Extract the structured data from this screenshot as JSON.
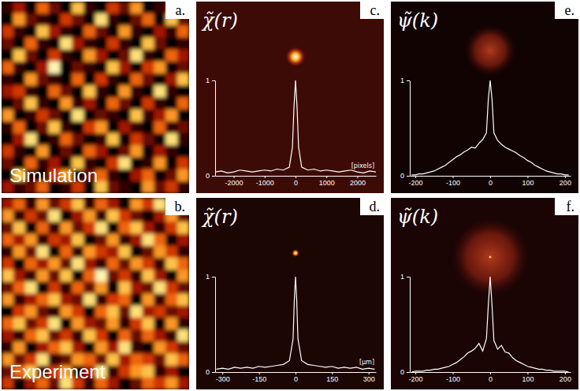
{
  "chart_data": [
    {
      "type": "heatmap",
      "label": "a.",
      "caption": "Simulation",
      "cells": [
        [
          1,
          3,
          0,
          5,
          2,
          0,
          7,
          1,
          0,
          4,
          2,
          6,
          0,
          1,
          3,
          0
        ],
        [
          0,
          6,
          2,
          1,
          0,
          4,
          2,
          0,
          8,
          1,
          0,
          2,
          5,
          0,
          7,
          2
        ],
        [
          4,
          1,
          0,
          7,
          3,
          1,
          0,
          5,
          2,
          0,
          6,
          1,
          0,
          3,
          1,
          5
        ],
        [
          2,
          0,
          5,
          1,
          0,
          8,
          3,
          1,
          0,
          4,
          1,
          0,
          7,
          2,
          0,
          1
        ],
        [
          0,
          7,
          2,
          0,
          4,
          1,
          0,
          6,
          3,
          0,
          2,
          8,
          1,
          0,
          5,
          3
        ],
        [
          5,
          1,
          0,
          3,
          9,
          0,
          2,
          1,
          0,
          7,
          3,
          0,
          4,
          6,
          0,
          2
        ],
        [
          1,
          0,
          6,
          2,
          1,
          0,
          5,
          0,
          4,
          1,
          0,
          5,
          2,
          0,
          3,
          7
        ],
        [
          3,
          4,
          1,
          0,
          5,
          2,
          0,
          7,
          1,
          0,
          6,
          1,
          0,
          8,
          1,
          0
        ],
        [
          0,
          2,
          7,
          1,
          0,
          6,
          1,
          3,
          0,
          5,
          2,
          0,
          4,
          1,
          0,
          5
        ],
        [
          6,
          0,
          1,
          4,
          2,
          0,
          8,
          0,
          2,
          1,
          0,
          7,
          1,
          3,
          6,
          0
        ],
        [
          1,
          5,
          0,
          2,
          7,
          1,
          0,
          4,
          6,
          0,
          3,
          1,
          0,
          5,
          1,
          2
        ],
        [
          0,
          3,
          8,
          0,
          1,
          5,
          2,
          0,
          1,
          7,
          0,
          4,
          2,
          0,
          8,
          1
        ],
        [
          4,
          1,
          0,
          6,
          0,
          2,
          0,
          5,
          3,
          0,
          2,
          6,
          0,
          3,
          1,
          0
        ],
        [
          2,
          0,
          5,
          1,
          3,
          0,
          7,
          1,
          0,
          4,
          8,
          0,
          1,
          6,
          0,
          4
        ],
        [
          0,
          7,
          1,
          0,
          4,
          6,
          0,
          2,
          5,
          1,
          0,
          3,
          5,
          0,
          2,
          6
        ],
        [
          3,
          1,
          2,
          5,
          0,
          1,
          4,
          0,
          7,
          2,
          1,
          0,
          6,
          2,
          4,
          1
        ]
      ]
    },
    {
      "type": "heatmap",
      "label": "b.",
      "caption": "Experiment",
      "cells": [
        [
          3,
          5,
          1,
          6,
          2,
          4,
          7,
          1,
          5,
          3,
          0,
          6,
          4,
          8,
          1,
          5
        ],
        [
          6,
          1,
          4,
          2,
          8,
          0,
          3,
          6,
          1,
          7,
          4,
          2,
          0,
          3,
          6,
          2
        ],
        [
          2,
          7,
          0,
          5,
          1,
          6,
          2,
          4,
          8,
          0,
          5,
          7,
          3,
          1,
          4,
          7
        ],
        [
          5,
          3,
          6,
          1,
          4,
          3,
          7,
          0,
          2,
          6,
          1,
          3,
          8,
          5,
          0,
          3
        ],
        [
          1,
          6,
          2,
          8,
          0,
          5,
          1,
          6,
          4,
          3,
          7,
          0,
          2,
          6,
          4,
          1
        ],
        [
          4,
          0,
          5,
          3,
          6,
          2,
          8,
          3,
          1,
          5,
          2,
          6,
          4,
          1,
          7,
          5
        ],
        [
          7,
          3,
          1,
          6,
          2,
          7,
          0,
          5,
          9,
          2,
          4,
          1,
          7,
          3,
          0,
          6
        ],
        [
          2,
          5,
          8,
          0,
          4,
          1,
          5,
          2,
          6,
          0,
          7,
          3,
          2,
          8,
          4,
          2
        ],
        [
          6,
          1,
          3,
          5,
          7,
          3,
          2,
          8,
          1,
          4,
          5,
          0,
          6,
          1,
          5,
          7
        ],
        [
          0,
          4,
          6,
          2,
          1,
          6,
          4,
          0,
          5,
          7,
          2,
          8,
          3,
          4,
          2,
          3
        ],
        [
          5,
          7,
          2,
          4,
          8,
          0,
          6,
          3,
          2,
          6,
          1,
          4,
          7,
          0,
          6,
          1
        ],
        [
          3,
          1,
          5,
          7,
          2,
          4,
          1,
          7,
          4,
          0,
          5,
          2,
          5,
          3,
          1,
          8
        ],
        [
          1,
          6,
          0,
          3,
          5,
          7,
          3,
          0,
          6,
          3,
          8,
          1,
          0,
          6,
          4,
          2
        ],
        [
          6,
          2,
          4,
          8,
          1,
          2,
          6,
          5,
          2,
          7,
          3,
          5,
          4,
          2,
          7,
          5
        ],
        [
          2,
          5,
          7,
          1,
          4,
          6,
          0,
          3,
          8,
          1,
          4,
          6,
          7,
          1,
          3,
          0
        ],
        [
          4,
          0,
          3,
          5,
          2,
          8,
          4,
          1,
          5,
          3,
          0,
          2,
          5,
          4,
          6,
          3
        ]
      ]
    },
    {
      "type": "line",
      "label": "c.",
      "title": "χ̃(r)",
      "xlabel": "[pixels]",
      "color": "#ffffff",
      "x": [
        -2600,
        -2400,
        -2200,
        -2000,
        -1800,
        -1600,
        -1400,
        -1200,
        -1000,
        -800,
        -600,
        -400,
        -200,
        -100,
        -50,
        0,
        50,
        100,
        200,
        400,
        600,
        800,
        1000,
        1200,
        1400,
        1600,
        1800,
        2000,
        2200,
        2400,
        2600
      ],
      "values": [
        0.04,
        0.05,
        0.03,
        0.04,
        0.06,
        0.05,
        0.04,
        0.05,
        0.06,
        0.05,
        0.07,
        0.06,
        0.09,
        0.3,
        0.72,
        1,
        0.72,
        0.3,
        0.09,
        0.06,
        0.07,
        0.05,
        0.06,
        0.05,
        0.04,
        0.05,
        0.06,
        0.04,
        0.03,
        0.05,
        0.04
      ],
      "xlim": [
        -2600,
        2600
      ],
      "xticks": [
        -2000,
        -1000,
        0,
        1000,
        2000
      ],
      "ylim": [
        0,
        1
      ],
      "yticks": [
        0,
        1
      ]
    },
    {
      "type": "line",
      "label": "d.",
      "title": "χ̃(r)",
      "xlabel": "[μm]",
      "color": "#ffffff",
      "x": [
        -325,
        -300,
        -275,
        -250,
        -225,
        -200,
        -175,
        -150,
        -125,
        -100,
        -75,
        -50,
        -25,
        -10,
        -5,
        0,
        5,
        10,
        25,
        50,
        75,
        100,
        125,
        150,
        175,
        200,
        225,
        250,
        275,
        300,
        325
      ],
      "values": [
        0.03,
        0.04,
        0.03,
        0.05,
        0.04,
        0.05,
        0.04,
        0.06,
        0.05,
        0.06,
        0.07,
        0.08,
        0.12,
        0.35,
        0.75,
        1,
        0.75,
        0.35,
        0.12,
        0.08,
        0.07,
        0.06,
        0.05,
        0.06,
        0.04,
        0.05,
        0.04,
        0.05,
        0.03,
        0.04,
        0.03
      ],
      "xlim": [
        -330,
        330
      ],
      "xticks": [
        -300,
        -150,
        0,
        150,
        300
      ],
      "ylim": [
        0,
        1
      ],
      "yticks": [
        0,
        1
      ]
    },
    {
      "type": "line",
      "label": "e.",
      "title": "ψ̃(k)",
      "color": "#ffffff",
      "x": [
        -210,
        -200,
        -190,
        -180,
        -170,
        -160,
        -150,
        -140,
        -130,
        -120,
        -110,
        -100,
        -90,
        -80,
        -70,
        -60,
        -50,
        -40,
        -30,
        -20,
        -10,
        -5,
        0,
        5,
        10,
        20,
        30,
        40,
        50,
        60,
        70,
        80,
        90,
        100,
        110,
        120,
        130,
        140,
        150,
        160,
        170,
        180,
        190,
        200,
        210
      ],
      "values": [
        0.01,
        0.01,
        0.02,
        0.02,
        0.03,
        0.04,
        0.05,
        0.07,
        0.09,
        0.11,
        0.14,
        0.17,
        0.2,
        0.22,
        0.25,
        0.27,
        0.3,
        0.29,
        0.34,
        0.38,
        0.45,
        0.8,
        1,
        0.8,
        0.45,
        0.37,
        0.33,
        0.3,
        0.28,
        0.26,
        0.24,
        0.21,
        0.19,
        0.16,
        0.14,
        0.11,
        0.09,
        0.07,
        0.05,
        0.04,
        0.03,
        0.02,
        0.02,
        0.01,
        0.01
      ],
      "xlim": [
        -215,
        215
      ],
      "xticks": [
        -200,
        -100,
        0,
        100,
        200
      ],
      "ylim": [
        0,
        1
      ],
      "yticks": [
        0,
        1
      ]
    },
    {
      "type": "line",
      "label": "f.",
      "title": "ψ̃(k)",
      "color": "#ffffff",
      "x": [
        -210,
        -200,
        -190,
        -180,
        -170,
        -160,
        -150,
        -140,
        -130,
        -120,
        -110,
        -100,
        -90,
        -80,
        -70,
        -60,
        -50,
        -40,
        -30,
        -20,
        -10,
        -5,
        0,
        5,
        10,
        20,
        30,
        40,
        50,
        60,
        70,
        80,
        90,
        100,
        110,
        120,
        130,
        140,
        150,
        160,
        170,
        180,
        190,
        200,
        210
      ],
      "values": [
        0,
        0.01,
        0.01,
        0.01,
        0.02,
        0.02,
        0.03,
        0.03,
        0.04,
        0.05,
        0.06,
        0.08,
        0.1,
        0.13,
        0.16,
        0.2,
        0.22,
        0.25,
        0.3,
        0.22,
        0.35,
        0.7,
        1,
        0.7,
        0.33,
        0.24,
        0.28,
        0.21,
        0.2,
        0.15,
        0.12,
        0.1,
        0.08,
        0.06,
        0.05,
        0.04,
        0.03,
        0.03,
        0.02,
        0.02,
        0.01,
        0.01,
        0.01,
        0.01,
        0
      ],
      "xlim": [
        -215,
        215
      ],
      "xticks": [
        -200,
        -100,
        0,
        100,
        200
      ],
      "ylim": [
        0,
        1
      ],
      "yticks": [
        0,
        1
      ]
    }
  ]
}
